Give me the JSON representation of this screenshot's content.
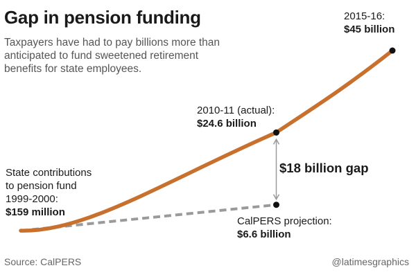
{
  "chart_data": {
    "type": "line",
    "title": "Gap in pension funding",
    "subtitle": "Taxpayers have had to pay billions more than anticipated to fund sweetened retirement benefits for state employees.",
    "unit": "billion dollars",
    "series": [
      {
        "role": "actual",
        "color": "#c8702e",
        "points": [
          {
            "year": 1999.5,
            "value": 0.159
          },
          {
            "year": 2010.5,
            "value": 24.6
          },
          {
            "year": 2015.5,
            "value": 45
          }
        ]
      },
      {
        "role": "projection",
        "color": "#9a9a9a",
        "points": [
          {
            "year": 1999.5,
            "value": 0.159
          },
          {
            "year": 2010.5,
            "value": 6.6
          }
        ]
      }
    ],
    "gap": {
      "value": 18,
      "label": "$18 billion gap"
    },
    "annotations": {
      "start": {
        "text_lines": [
          "State contributions",
          "to pension fund",
          "1999-2000:"
        ],
        "value_text": "$159 million"
      },
      "mid": {
        "text": "2010-11 (actual):",
        "value_text": "$24.6 billion"
      },
      "end": {
        "text": "2015-16:",
        "value_text": "$45 billion"
      },
      "projection": {
        "text": "CalPERS projection:",
        "value_text": "$6.6 billion"
      }
    },
    "source": "Source: CalPERS",
    "credit": "@latimesgraphics"
  }
}
